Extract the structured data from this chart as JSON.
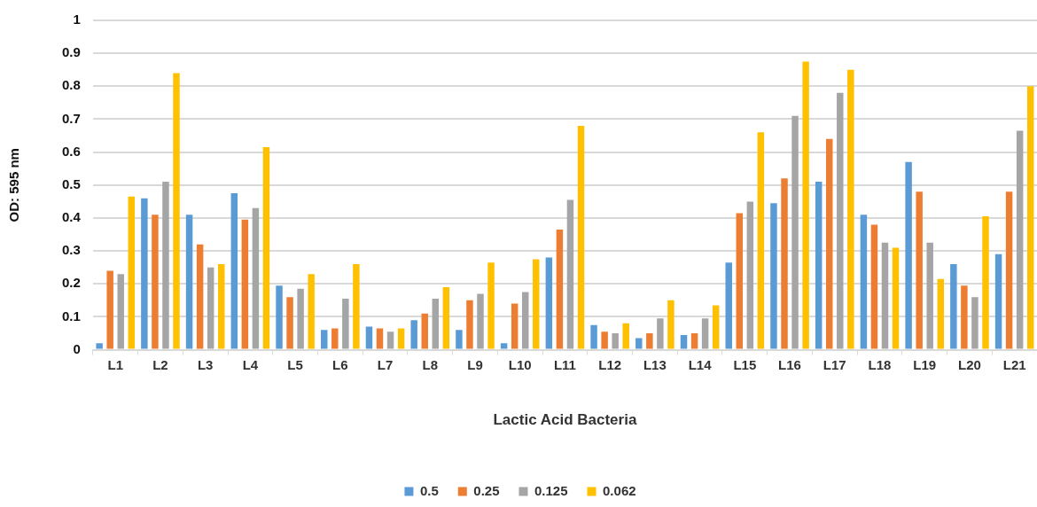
{
  "chart_data": {
    "type": "bar",
    "xlabel": "Lactic Acid Bacteria",
    "ylabel": "OD: 595 nm",
    "categories": [
      "L1",
      "L2",
      "L3",
      "L4",
      "L5",
      "L6",
      "L7",
      "L8",
      "L9",
      "L10",
      "L11",
      "L12",
      "L13",
      "L14",
      "L15",
      "L16",
      "L17",
      "L18",
      "L19",
      "L20",
      "L21"
    ],
    "series": [
      {
        "name": "0.5",
        "color": "#5b9bd5",
        "values": [
          0.02,
          0.46,
          0.41,
          0.475,
          0.195,
          0.06,
          0.07,
          0.09,
          0.06,
          0.02,
          0.28,
          0.075,
          0.035,
          0.045,
          0.265,
          0.445,
          0.51,
          0.41,
          0.57,
          0.26,
          0.29
        ]
      },
      {
        "name": "0.25",
        "color": "#ed7d31",
        "values": [
          0.24,
          0.41,
          0.32,
          0.395,
          0.16,
          0.065,
          0.065,
          0.11,
          0.15,
          0.14,
          0.365,
          0.055,
          0.05,
          0.05,
          0.415,
          0.52,
          0.64,
          0.38,
          0.48,
          0.195,
          0.48
        ]
      },
      {
        "name": "0.125",
        "color": "#a5a5a5",
        "values": [
          0.23,
          0.51,
          0.25,
          0.43,
          0.185,
          0.155,
          0.055,
          0.155,
          0.17,
          0.175,
          0.455,
          0.05,
          0.095,
          0.095,
          0.45,
          0.71,
          0.78,
          0.325,
          0.325,
          0.16,
          0.665
        ]
      },
      {
        "name": "0.062",
        "color": "#ffc000",
        "values": [
          0.465,
          0.84,
          0.26,
          0.615,
          0.23,
          0.26,
          0.065,
          0.19,
          0.265,
          0.275,
          0.68,
          0.08,
          0.15,
          0.135,
          0.66,
          0.875,
          0.85,
          0.31,
          0.215,
          0.405,
          0.8
        ]
      }
    ],
    "ylim": [
      0,
      1
    ],
    "yticks": [
      0,
      0.1,
      0.2,
      0.3,
      0.4,
      0.5,
      0.6,
      0.7,
      0.8,
      0.9,
      1
    ],
    "grid": "y",
    "legend": "bottom"
  }
}
